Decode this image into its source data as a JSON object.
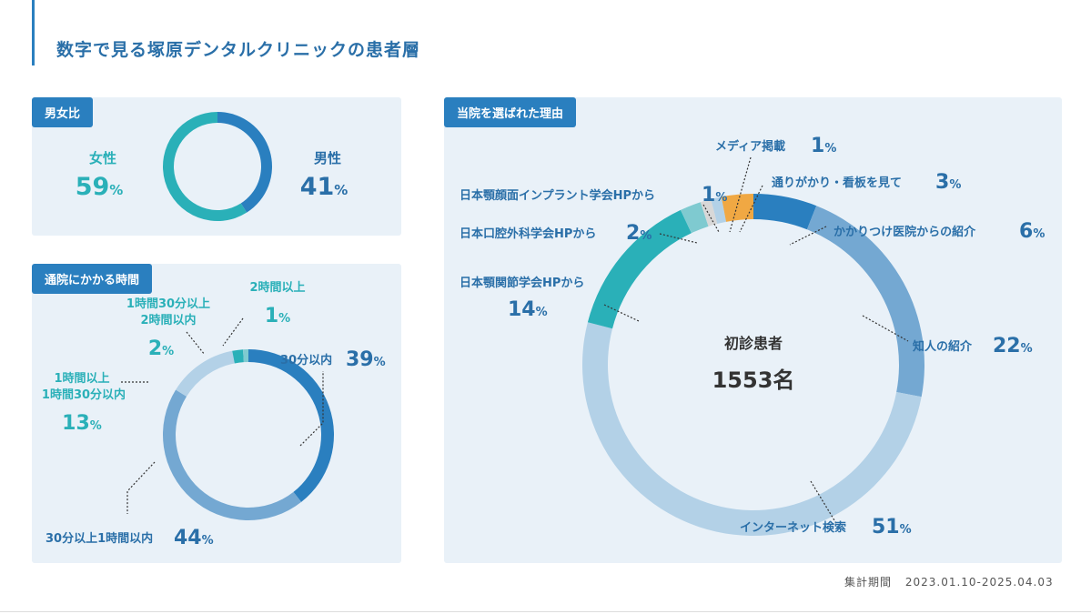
{
  "page_title": "数字で見る塚原デンタルクリニックの患者層",
  "footer": {
    "label": "集計期間",
    "period": "2023.01.10-2025.04.03"
  },
  "colors": {
    "blue": "#2a7fbf",
    "teal": "#2ab0b8",
    "mid_blue": "#74a8d2",
    "light_blue": "#b3d1e7",
    "orange": "#f0a843",
    "pale_teal": "#7fcad0",
    "grey": "#d8d8d8"
  },
  "chart_data": [
    {
      "type": "pie",
      "title": "男女比",
      "categories": [
        "男性",
        "女性"
      ],
      "values": [
        41,
        59
      ],
      "labels": {
        "female": {
          "name": "女性",
          "pct": "59",
          "unit": "%"
        },
        "male": {
          "name": "男性",
          "pct": "41",
          "unit": "%"
        }
      }
    },
    {
      "type": "pie",
      "title": "通院にかかる時間",
      "categories": [
        "30分以内",
        "30分以上1時間以内",
        "1時間以上1時間30分以内",
        "1時間30分以上2時間以内",
        "2時間以上"
      ],
      "values": [
        39,
        44,
        13,
        2,
        1
      ],
      "labels": {
        "within30": {
          "name": "30分以内",
          "pct": "39",
          "unit": "%"
        },
        "h1": {
          "name": "30分以上1時間以内",
          "pct": "44",
          "unit": "%"
        },
        "h1_30_a": "1時間以上",
        "h1_30_b": "1時間30分以内",
        "h1_30_pct": "13",
        "h2_a": "1時間30分以上",
        "h2_b": "2時間以内",
        "h2_pct": "2",
        "over2": "2時間以上",
        "over2_pct": "1",
        "unit": "%"
      }
    },
    {
      "type": "pie",
      "title": "当院を選ばれた理由",
      "center_label": "初診患者",
      "center_value": "1553名",
      "categories": [
        "かかりつけ医院からの紹介",
        "知人の紹介",
        "インターネット検索",
        "日本顎関節学会HPから",
        "日本口腔外科学会HPから",
        "日本顎顔面インプラント学会HPから",
        "メディア掲載",
        "通りがかり・看板を見て"
      ],
      "values": [
        6,
        22,
        51,
        14,
        2,
        1,
        1,
        3
      ],
      "labels": {
        "family": {
          "name": "かかりつけ医院からの紹介",
          "pct": "6",
          "unit": "%"
        },
        "friend": {
          "name": "知人の紹介",
          "pct": "22",
          "unit": "%"
        },
        "internet": {
          "name": "インターネット検索",
          "pct": "51",
          "unit": "%"
        },
        "tmj": {
          "name": "日本顎関節学会HPから",
          "pct": "14",
          "unit": "%"
        },
        "oral": {
          "name": "日本口腔外科学会HPから",
          "pct": "2",
          "unit": "%"
        },
        "implant": {
          "name": "日本顎顔面インプラント学会HPから",
          "pct": "1",
          "unit": "%"
        },
        "media": {
          "name": "メディア掲載",
          "pct": "1",
          "unit": "%"
        },
        "passby": {
          "name": "通りがかり・看板を見て",
          "pct": "3",
          "unit": "%"
        }
      }
    }
  ]
}
